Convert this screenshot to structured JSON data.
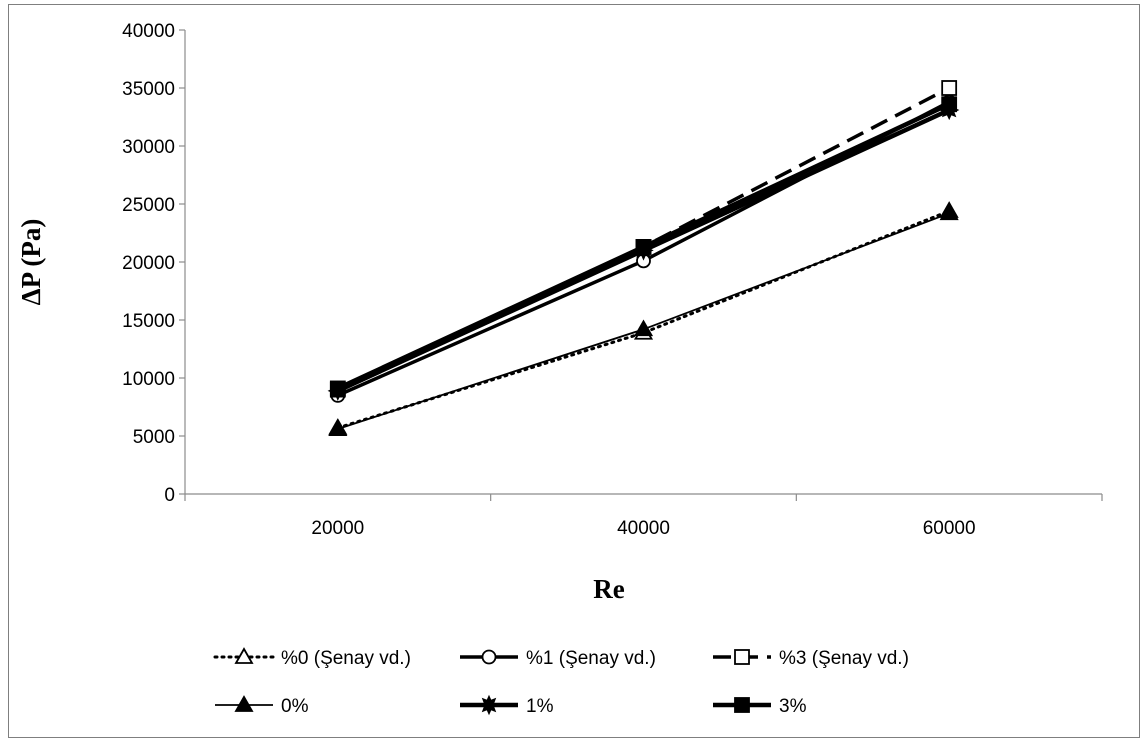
{
  "chart_data": {
    "type": "line",
    "title": "",
    "xlabel": "Re",
    "ylabel": "ΔP (Pa)",
    "categories": [
      "20000",
      "40000",
      "60000"
    ],
    "ylim": [
      0,
      40000
    ],
    "yticks": [
      "0",
      "5000",
      "10000",
      "15000",
      "20000",
      "25000",
      "30000",
      "35000",
      "40000"
    ],
    "grid": false,
    "legend_position": "bottom",
    "series": [
      {
        "name": "%0 (Şenay vd.)",
        "values": [
          5700,
          13900,
          24400
        ],
        "line": "dotted",
        "width": 3,
        "marker": "triangle-open",
        "color": "#000000"
      },
      {
        "name": "%1 (Şenay vd.)",
        "values": [
          8500,
          20100,
          33800
        ],
        "line": "solid",
        "width": 3.5,
        "marker": "circle-open",
        "color": "#000000"
      },
      {
        "name": "%3 (Şenay vd.)",
        "values": [
          9000,
          21300,
          35000
        ],
        "line": "dashed",
        "width": 3.5,
        "marker": "square-open",
        "color": "#000000"
      },
      {
        "name": "0%",
        "values": [
          5600,
          14200,
          24200
        ],
        "line": "solid",
        "width": 1.8,
        "marker": "triangle-filled",
        "color": "#000000"
      },
      {
        "name": "1%",
        "values": [
          8900,
          21000,
          33100
        ],
        "line": "solid",
        "width": 4.5,
        "marker": "star-filled",
        "color": "#000000"
      },
      {
        "name": "3%",
        "values": [
          9100,
          21300,
          33600
        ],
        "line": "solid",
        "width": 4.5,
        "marker": "square-filled",
        "color": "#000000"
      }
    ]
  }
}
